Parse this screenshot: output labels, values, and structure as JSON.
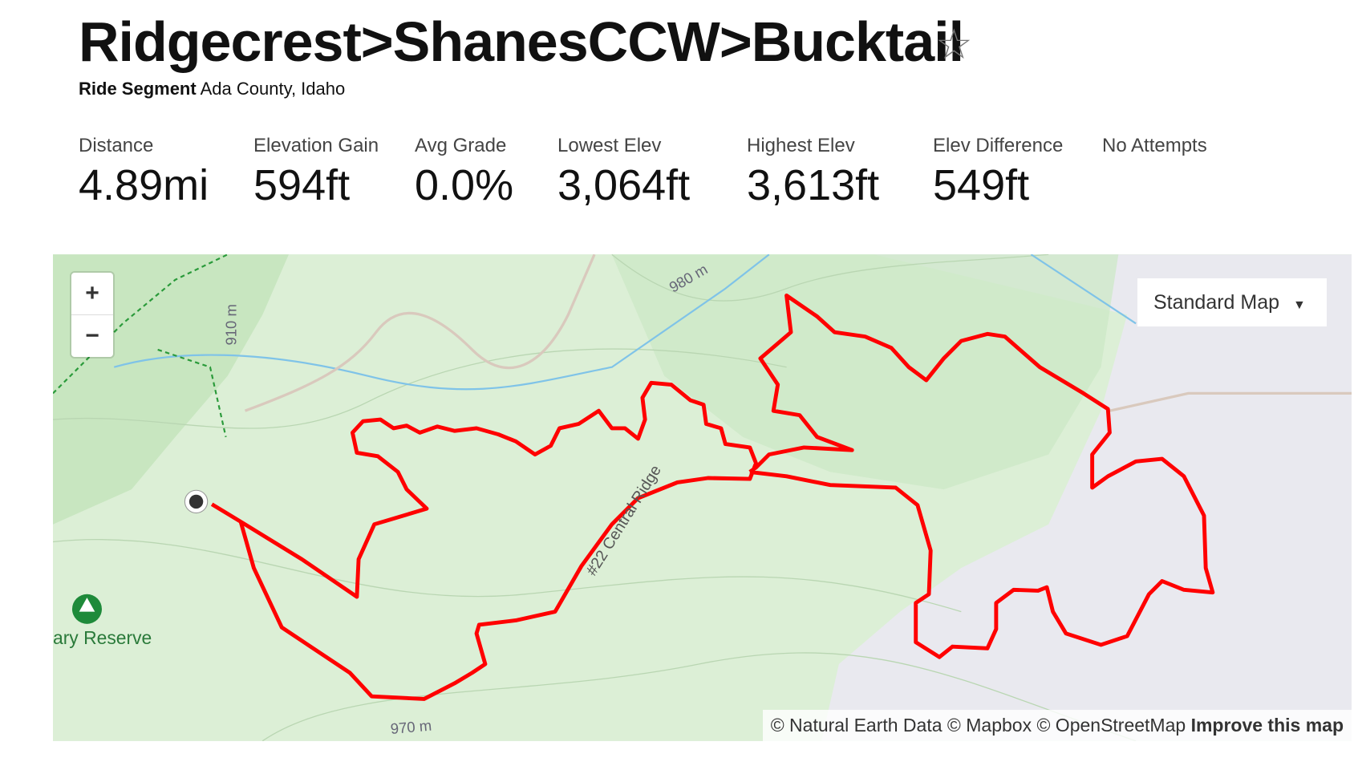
{
  "header": {
    "title": "Ridgecrest>ShanesCCW>Bucktail",
    "type": "Ride Segment",
    "location": "Ada County, Idaho"
  },
  "stats": [
    {
      "label": "Distance",
      "value": "4.89mi"
    },
    {
      "label": "Elevation Gain",
      "value": "594ft"
    },
    {
      "label": "Avg Grade",
      "value": "0.0%"
    },
    {
      "label": "Lowest Elev",
      "value": "3,064ft"
    },
    {
      "label": "Highest Elev",
      "value": "3,613ft"
    },
    {
      "label": "Elev Difference",
      "value": "549ft"
    },
    {
      "label": "No Attempts"
    }
  ],
  "map": {
    "zoom_in": "+",
    "zoom_out": "−",
    "style": "Standard Map",
    "labels": [
      "980 m",
      "910 m",
      "970 m",
      "#22 Central Ridge",
      "ary Reserve"
    ],
    "attribution": "© Natural Earth Data © Mapbox © OpenStreetMap",
    "improve": "Improve this map"
  }
}
